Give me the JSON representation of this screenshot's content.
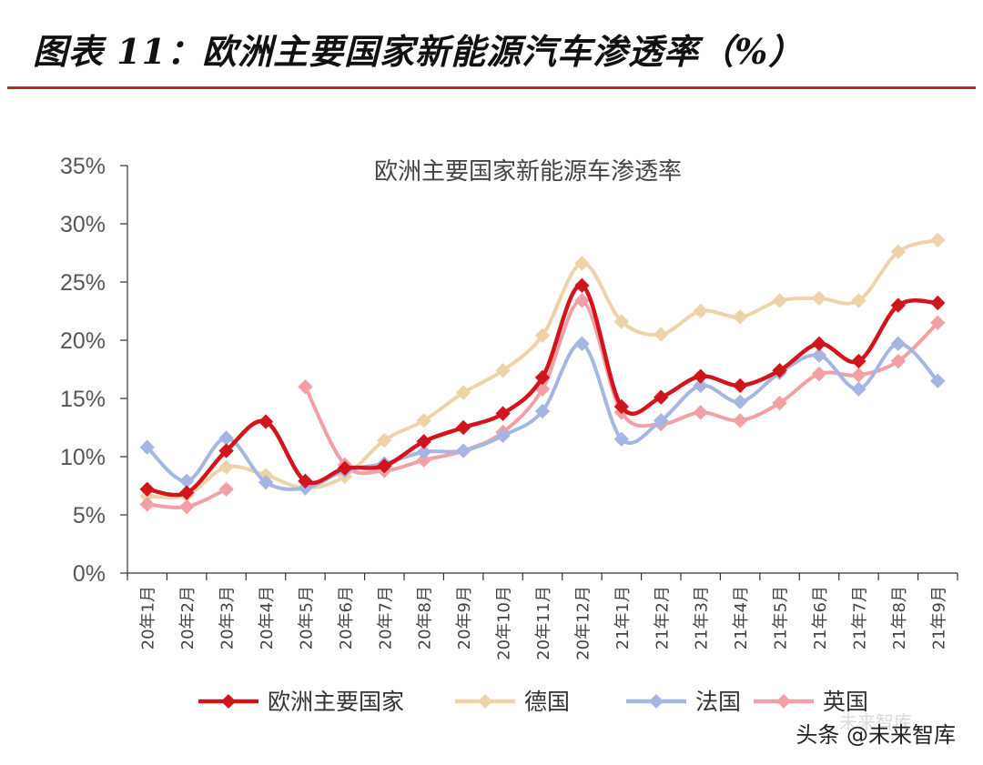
{
  "header": {
    "title": "图表 11：欧洲主要国家新能源汽车渗透率（%）",
    "rule_color": "#c0282f"
  },
  "watermark": {
    "text": "头条 @未来智库",
    "faint_text": "未来智库"
  },
  "chart_data": {
    "type": "line",
    "title": "欧洲主要国家新能源车渗透率",
    "xlabel": "",
    "ylabel": "",
    "ylim": [
      0,
      35
    ],
    "yticks": [
      0,
      5,
      10,
      15,
      20,
      25,
      30,
      35
    ],
    "ytick_labels": [
      "0%",
      "5%",
      "10%",
      "15%",
      "20%",
      "25%",
      "30%",
      "35%"
    ],
    "grid": false,
    "legend_position": "bottom",
    "categories": [
      "20年1月",
      "20年2月",
      "20年3月",
      "20年4月",
      "20年5月",
      "20年6月",
      "20年7月",
      "20年8月",
      "20年9月",
      "20年10月",
      "20年11月",
      "20年12月",
      "21年1月",
      "21年2月",
      "21年3月",
      "21年4月",
      "21年5月",
      "21年6月",
      "21年7月",
      "21年8月",
      "21年9月"
    ],
    "series": [
      {
        "name": "欧洲主要国家",
        "color": "#d0161c",
        "values": [
          7.2,
          6.9,
          10.5,
          13.0,
          7.9,
          9.0,
          9.2,
          11.3,
          12.5,
          13.7,
          16.8,
          24.7,
          14.3,
          15.1,
          16.9,
          16.1,
          17.4,
          19.7,
          18.2,
          23.0,
          23.2
        ]
      },
      {
        "name": "德国",
        "color": "#edd3a8",
        "values": [
          6.6,
          6.7,
          9.1,
          8.4,
          7.3,
          8.3,
          11.4,
          13.1,
          15.5,
          17.4,
          20.4,
          26.6,
          21.6,
          20.5,
          22.5,
          22.0,
          23.4,
          23.6,
          23.4,
          27.6,
          28.6
        ]
      },
      {
        "name": "法国",
        "color": "#a5b6e2",
        "values": [
          10.8,
          7.9,
          11.6,
          7.8,
          7.3,
          8.8,
          9.4,
          10.4,
          10.5,
          11.8,
          13.9,
          19.7,
          11.5,
          13.1,
          16.1,
          14.7,
          17.2,
          18.7,
          15.8,
          19.7,
          16.5
        ]
      },
      {
        "name": "英国",
        "color": "#f2a0a6",
        "values": [
          5.9,
          5.7,
          7.2,
          null,
          16.0,
          9.3,
          8.8,
          9.7,
          10.5,
          12.1,
          15.8,
          23.4,
          13.8,
          12.8,
          13.8,
          13.1,
          14.6,
          17.1,
          17.0,
          18.2,
          21.5
        ]
      }
    ]
  }
}
